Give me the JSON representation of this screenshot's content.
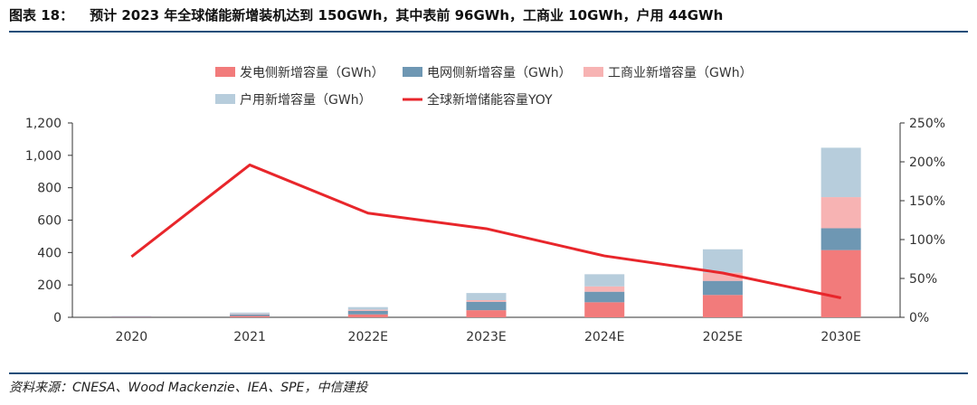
{
  "figure": {
    "label": "图表 18：",
    "title": "预计 2023 年全球储能新增装机达到 150GWh，其中表前 96GWh，工商业 10GWh，户用 44GWh",
    "source": "资料来源：CNESA、Wood Mackenzie、IEA、SPE，中信建投"
  },
  "chart_data": {
    "type": "bar",
    "stacked": true,
    "categories": [
      "2020",
      "2021",
      "2022E",
      "2023E",
      "2024E",
      "2025E",
      "2030E"
    ],
    "series": [
      {
        "name": "发电侧新增容量（GWh）",
        "color": "#f27b7b",
        "values": [
          2,
          8,
          18,
          44,
          93,
          138,
          415
        ]
      },
      {
        "name": "电网侧新增容量（GWh）",
        "color": "#6e97b3",
        "values": [
          3,
          10,
          22,
          52,
          65,
          87,
          135
        ]
      },
      {
        "name": "工商业新增容量（GWh）",
        "color": "#f7b3b3",
        "values": [
          1,
          3,
          7,
          10,
          33,
          50,
          192
        ]
      },
      {
        "name": "户用新增容量（GWh）",
        "color": "#b7cddc",
        "values": [
          2,
          8,
          16,
          44,
          75,
          145,
          305
        ]
      }
    ],
    "line": {
      "name": "全球新增储能容量YOY",
      "color": "#e8262b",
      "axis": "right",
      "values": [
        0.78,
        1.96,
        1.34,
        1.14,
        0.79,
        0.57,
        0.25
      ]
    },
    "yleft": {
      "min": 0,
      "max": 1200,
      "ticks": [
        "0",
        "200",
        "400",
        "600",
        "800",
        "1,000",
        "1,200"
      ]
    },
    "yright": {
      "min": 0,
      "max": 2.5,
      "ticks": [
        "0%",
        "50%",
        "100%",
        "150%",
        "200%",
        "250%"
      ]
    },
    "legend_position": "top"
  }
}
